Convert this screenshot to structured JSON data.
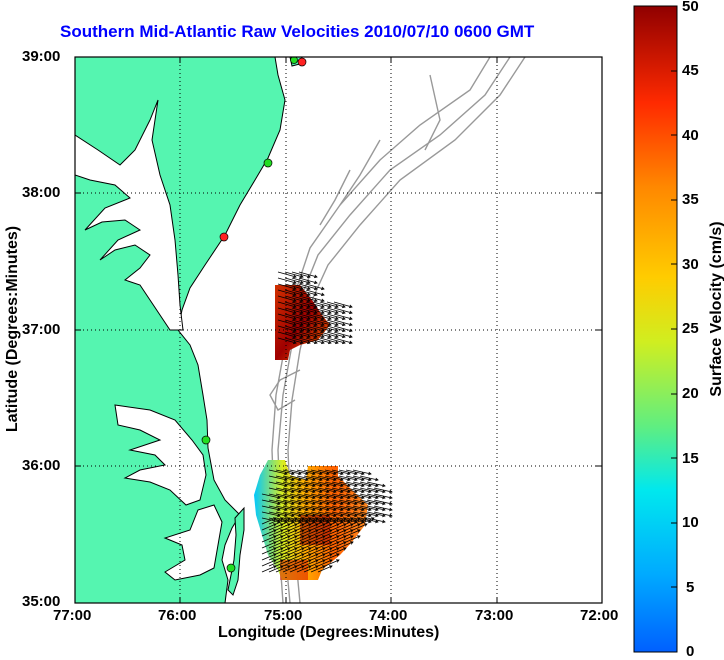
{
  "title": "Southern Mid-Atlantic Raw Velocities 2010/07/10 0600 GMT",
  "xlabel": "Longitude (Degrees:Minutes)",
  "ylabel": "Latitude (Degrees:Minutes)",
  "colorbar_label": "Surface Velocity (cm/s)",
  "x_ticks": [
    "77:00",
    "76:00",
    "75:00",
    "74:00",
    "73:00",
    "72:00"
  ],
  "y_ticks": [
    "39:00",
    "38:00",
    "37:00",
    "36:00",
    "35:00"
  ],
  "colorbar_ticks": [
    "50",
    "45",
    "40",
    "35",
    "30",
    "25",
    "20",
    "15",
    "10",
    "5",
    "0"
  ],
  "colors": {
    "title": "#0000ff",
    "land": "#55f5b0",
    "coast": "#000000",
    "bathymetry": "#999999",
    "site_marker_active": "#22dd22",
    "site_marker_inactive": "#ff2222"
  },
  "map": {
    "x_range_deg": [
      -77,
      -72
    ],
    "y_range_deg": [
      35,
      39
    ],
    "grid": true,
    "colormap": "jet",
    "colorbar_range_cms": [
      0,
      50
    ]
  }
}
